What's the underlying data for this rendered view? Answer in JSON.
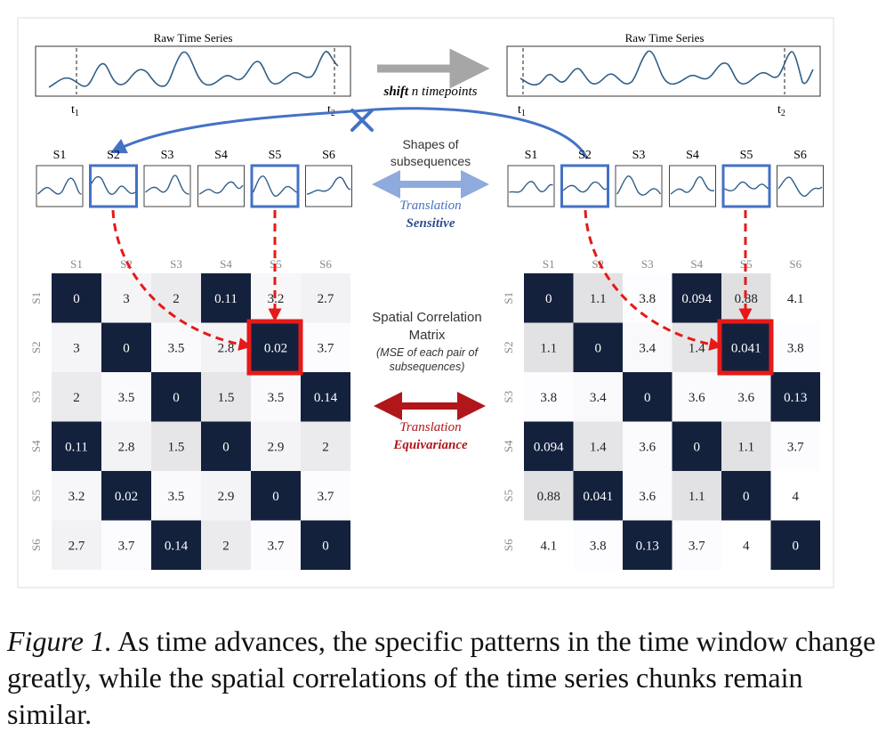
{
  "left": {
    "raw_title": "Raw Time Series",
    "t1": "t",
    "t1_sub": "1",
    "t2": "t",
    "t2_sub": "2",
    "subseq_labels": [
      "S1",
      "S2",
      "S3",
      "S4",
      "S5",
      "S6"
    ],
    "matrix": [
      [
        "0",
        "3",
        "2",
        "0.11",
        "3.2",
        "2.7"
      ],
      [
        "3",
        "0",
        "3.5",
        "2.8",
        "0.02",
        "3.7"
      ],
      [
        "2",
        "3.5",
        "0",
        "1.5",
        "3.5",
        "0.14"
      ],
      [
        "0.11",
        "2.8",
        "1.5",
        "0",
        "2.9",
        "2"
      ],
      [
        "3.2",
        "0.02",
        "3.5",
        "2.9",
        "0",
        "3.7"
      ],
      [
        "2.7",
        "3.7",
        "0.14",
        "2",
        "3.7",
        "0"
      ]
    ]
  },
  "right": {
    "raw_title": "Raw Time Series",
    "t1": "t",
    "t1_sub": "1",
    "t2": "t",
    "t2_sub": "2",
    "subseq_labels": [
      "S1",
      "S2",
      "S3",
      "S4",
      "S5",
      "S6"
    ],
    "matrix": [
      [
        "0",
        "1.1",
        "3.8",
        "0.094",
        "0.88",
        "4.1"
      ],
      [
        "1.1",
        "0",
        "3.4",
        "1.4",
        "0.041",
        "3.8"
      ],
      [
        "3.8",
        "3.4",
        "0",
        "3.6",
        "3.6",
        "0.13"
      ],
      [
        "0.094",
        "1.4",
        "3.6",
        "0",
        "1.1",
        "3.7"
      ],
      [
        "0.88",
        "0.041",
        "3.6",
        "1.1",
        "0",
        "4"
      ],
      [
        "4.1",
        "3.8",
        "0.13",
        "3.7",
        "4",
        "0"
      ]
    ]
  },
  "middle": {
    "shift_bold": "shift",
    "shift_rest": " n timepoints",
    "shapes_line1": "Shapes of",
    "shapes_line2": "subsequences",
    "translation1": "Translation",
    "sensitive": "Sensitive",
    "scm_line1": "Spatial Correlation",
    "scm_line2": "Matrix",
    "mse_line1": "(MSE of each pair of",
    "mse_line2": "subsequences)",
    "translation2": "Translation",
    "equivariance": "Equivariance"
  },
  "colors": {
    "dark_cell": "#14213d",
    "blue_accent": "#4472c4",
    "red_accent": "#e61919",
    "dark_red_accent": "#b0161a",
    "gray_arrow": "#a6a6a6",
    "light_blue_arrow": "#8faadc"
  },
  "caption": {
    "label": "Figure 1.",
    "text": " As time advances, the specific patterns in the time window change greatly, while the spatial correlations of the time series chunks remain similar."
  }
}
